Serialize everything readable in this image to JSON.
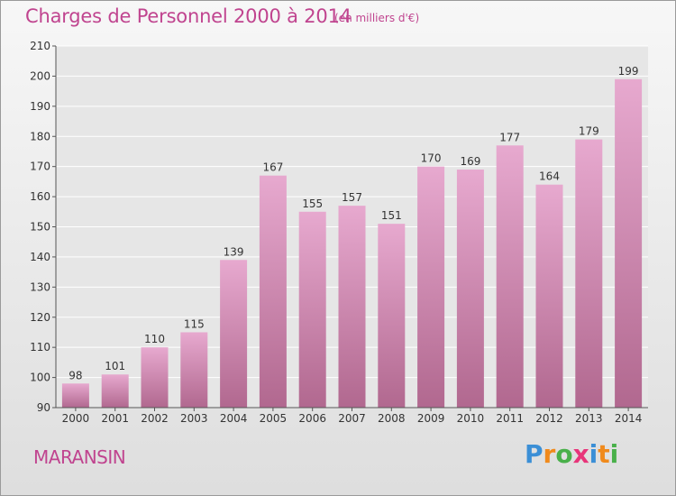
{
  "header": {
    "title": "Charges de Personnel 2000 à 2014",
    "subtitle": "(en milliers d'€)"
  },
  "footer": {
    "commune": "MARANSIN",
    "logo": [
      "P",
      "r",
      "o",
      "x",
      "i",
      "t",
      "i"
    ],
    "logo_colors": [
      "#3b8fd6",
      "#f08a1c",
      "#49b04a",
      "#e8357a",
      "#3b8fd6",
      "#f08a1c",
      "#49b04a"
    ]
  },
  "chart_data": {
    "type": "bar",
    "categories": [
      "2000",
      "2001",
      "2002",
      "2003",
      "2004",
      "2005",
      "2006",
      "2007",
      "2008",
      "2009",
      "2010",
      "2011",
      "2012",
      "2013",
      "2014"
    ],
    "values": [
      98,
      101,
      110,
      115,
      139,
      167,
      155,
      157,
      151,
      170,
      169,
      177,
      164,
      179,
      199
    ],
    "ylim": [
      90,
      210
    ],
    "yticks": [
      90,
      100,
      110,
      120,
      130,
      140,
      150,
      160,
      170,
      180,
      190,
      200,
      210
    ],
    "grid": true,
    "bar_color_top": "#e7a9cf",
    "bar_color_bottom": "#b1688f",
    "label_color": "#333333"
  }
}
